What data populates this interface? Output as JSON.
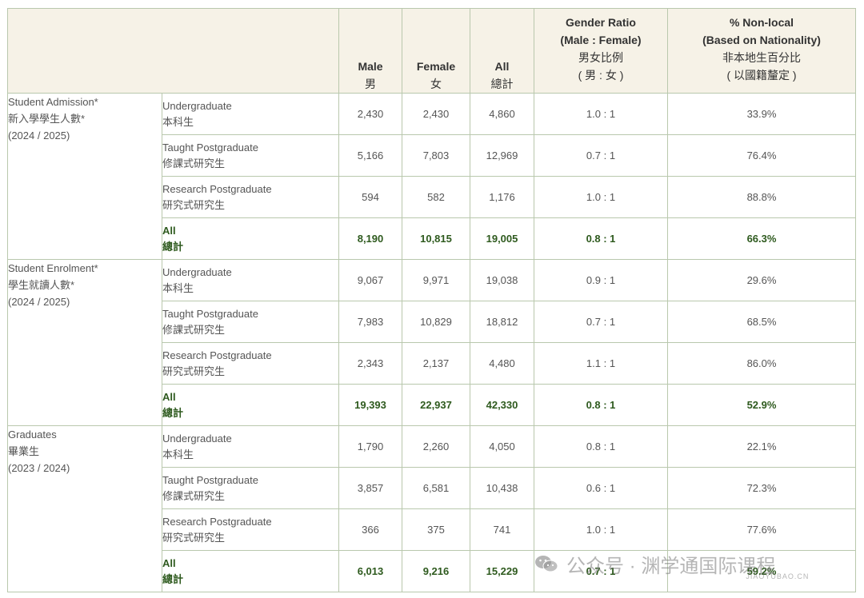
{
  "headers": {
    "male": {
      "en": "Male",
      "zh": "男"
    },
    "female": {
      "en": "Female",
      "zh": "女"
    },
    "all": {
      "en": "All",
      "zh": "總計"
    },
    "ratio": {
      "en1": "Gender Ratio",
      "en2": "(Male : Female)",
      "zh1": "男女比例",
      "zh2": "( 男 : 女 )"
    },
    "nonlocal": {
      "en1": "% Non-local",
      "en2": "(Based on Nationality)",
      "zh1": "非本地生百分比",
      "zh2": "( 以國籍釐定 )"
    }
  },
  "sections": [
    {
      "title_en": "Student Admission*",
      "title_zh": "新入學學生人數*",
      "period": "(2024 / 2025)",
      "rows": [
        {
          "en": "Undergraduate",
          "zh": "本科生",
          "male": "2,430",
          "female": "2,430",
          "all": "4,860",
          "ratio": "1.0 : 1",
          "nonlocal": "33.9%"
        },
        {
          "en": "Taught Postgraduate",
          "zh": "修課式研究生",
          "male": "5,166",
          "female": "7,803",
          "all": "12,969",
          "ratio": "0.7 : 1",
          "nonlocal": "76.4%"
        },
        {
          "en": "Research Postgraduate",
          "zh": "研究式研究生",
          "male": "594",
          "female": "582",
          "all": "1,176",
          "ratio": "1.0 : 1",
          "nonlocal": "88.8%"
        },
        {
          "en": "All",
          "zh": "總計",
          "male": "8,190",
          "female": "10,815",
          "all": "19,005",
          "ratio": "0.8 : 1",
          "nonlocal": "66.3%"
        }
      ]
    },
    {
      "title_en": "Student Enrolment*",
      "title_zh": "學生就讀人數*",
      "period": "(2024 / 2025)",
      "rows": [
        {
          "en": "Undergraduate",
          "zh": "本科生",
          "male": "9,067",
          "female": "9,971",
          "all": "19,038",
          "ratio": "0.9 : 1",
          "nonlocal": "29.6%"
        },
        {
          "en": "Taught Postgraduate",
          "zh": "修課式研究生",
          "male": "7,983",
          "female": "10,829",
          "all": "18,812",
          "ratio": "0.7 : 1",
          "nonlocal": "68.5%"
        },
        {
          "en": "Research Postgraduate",
          "zh": "研究式研究生",
          "male": "2,343",
          "female": "2,137",
          "all": "4,480",
          "ratio": "1.1 : 1",
          "nonlocal": "86.0%"
        },
        {
          "en": "All",
          "zh": "總計",
          "male": "19,393",
          "female": "22,937",
          "all": "42,330",
          "ratio": "0.8 : 1",
          "nonlocal": "52.9%"
        }
      ]
    },
    {
      "title_en": "Graduates",
      "title_zh": "畢業生",
      "period": "(2023 / 2024)",
      "rows": [
        {
          "en": "Undergraduate",
          "zh": "本科生",
          "male": "1,790",
          "female": "2,260",
          "all": "4,050",
          "ratio": "0.8 : 1",
          "nonlocal": "22.1%"
        },
        {
          "en": "Taught Postgraduate",
          "zh": "修課式研究生",
          "male": "3,857",
          "female": "6,581",
          "all": "10,438",
          "ratio": "0.6 : 1",
          "nonlocal": "72.3%"
        },
        {
          "en": "Research Postgraduate",
          "zh": "研究式研究生",
          "male": "366",
          "female": "375",
          "all": "741",
          "ratio": "1.0 : 1",
          "nonlocal": "77.6%"
        },
        {
          "en": "All",
          "zh": "總計",
          "male": "6,013",
          "female": "9,216",
          "all": "15,229",
          "ratio": "0.7 : 1",
          "nonlocal": "59.2%"
        }
      ]
    }
  ],
  "watermark": {
    "icon": "wechat-icon",
    "text": "公众号 · 渊学通国际课程",
    "site": "JIAOYUBAO.CN"
  }
}
